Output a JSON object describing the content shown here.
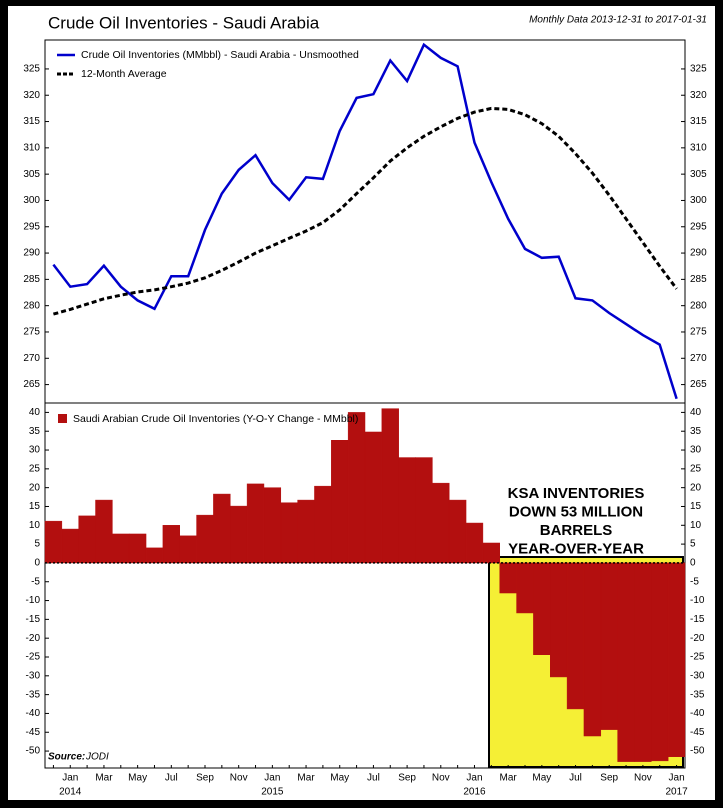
{
  "chart_data": [
    {
      "type": "line",
      "title": "Crude Oil Inventories - Saudi Arabia",
      "subtitle": "Monthly Data 2013-12-31 to 2017-01-31",
      "series": [
        {
          "name": "Crude Oil Inventories (MMbbl) - Saudi Arabia - Unsmoothed",
          "color": "#0000cc",
          "style": "solid",
          "values": [
            287.8,
            283.6,
            284.1,
            287.6,
            283.6,
            281,
            279.4,
            285.6,
            285.6,
            294.4,
            301.3,
            305.8,
            308.6,
            303.3,
            300.1,
            304.4,
            304.1,
            313.2,
            319.5,
            320.2,
            326.6,
            322.7,
            329.6,
            327.1,
            325.5,
            311,
            303.5,
            296.5,
            290.8,
            289.1,
            289.3,
            281.4,
            281,
            278.6,
            276.5,
            274.4,
            272.6,
            262.3
          ]
        },
        {
          "name": "12-Month Average",
          "color": "#000000",
          "style": "dashed",
          "values": [
            278.4,
            279.3,
            280.3,
            281.3,
            282,
            282.6,
            283,
            283.6,
            284.3,
            285.3,
            286.7,
            288.3,
            290,
            291.4,
            292.8,
            294.2,
            295.8,
            298.2,
            301.3,
            304.3,
            307.5,
            310,
            312.2,
            314,
            315.6,
            316.8,
            317.5,
            317.3,
            316.3,
            314.6,
            312.2,
            308.9,
            305.2,
            301,
            296.5,
            292,
            287.5,
            283.2
          ]
        }
      ],
      "ylim": [
        261.5,
        330.5
      ],
      "yticks": [
        265,
        270,
        275,
        280,
        285,
        290,
        295,
        300,
        305,
        310,
        315,
        320,
        325
      ],
      "legend": "upper left"
    },
    {
      "type": "bar",
      "series": [
        {
          "name": "Saudi Arabian Crude Oil Inventories (Y-O-Y Change - MMbbl)",
          "color": "#b30f0f",
          "values": [
            11.1,
            9,
            12.5,
            16.7,
            7.7,
            7.7,
            4,
            10,
            7.2,
            12.7,
            18.3,
            15.1,
            21,
            20,
            16,
            16.7,
            20.4,
            32.6,
            40,
            34.8,
            41,
            28,
            28,
            21.2,
            16.7,
            10.6,
            5.3,
            -8,
            -13.3,
            -24.4,
            -30.3,
            -38.8,
            -46,
            -44.3,
            -52.8,
            -52.8,
            -52.6,
            -51.5
          ]
        }
      ],
      "categories": [
        null,
        "Jan",
        null,
        "Mar",
        null,
        "May",
        null,
        "Jul",
        null,
        "Sep",
        null,
        "Nov",
        null,
        "Jan",
        null,
        "Mar",
        null,
        "May",
        null,
        "Jul",
        null,
        "Sep",
        null,
        "Nov",
        null,
        "Jan",
        null,
        "Mar",
        null,
        "May",
        null,
        "Jul",
        null,
        "Sep",
        null,
        "Nov",
        null,
        "Jan"
      ],
      "x_year_labels": [
        {
          "value": 1,
          "label": "2014"
        },
        {
          "value": 13,
          "label": "2015"
        },
        {
          "value": 25,
          "label": "2016"
        },
        {
          "value": 37,
          "label": "2017"
        }
      ],
      "ylim": [
        -54.5,
        42.5
      ],
      "yticks": [
        -50,
        -45,
        -40,
        -35,
        -30,
        -25,
        -20,
        -15,
        -10,
        -5,
        0,
        5,
        10,
        15,
        20,
        25,
        30,
        35,
        40
      ],
      "legend": "upper left",
      "annotation": [
        "KSA INVENTORIES",
        "DOWN 53 MILLION",
        "BARRELS",
        "YEAR-OVER-YEAR"
      ],
      "source_label": "Source:",
      "source": "JODI"
    }
  ]
}
